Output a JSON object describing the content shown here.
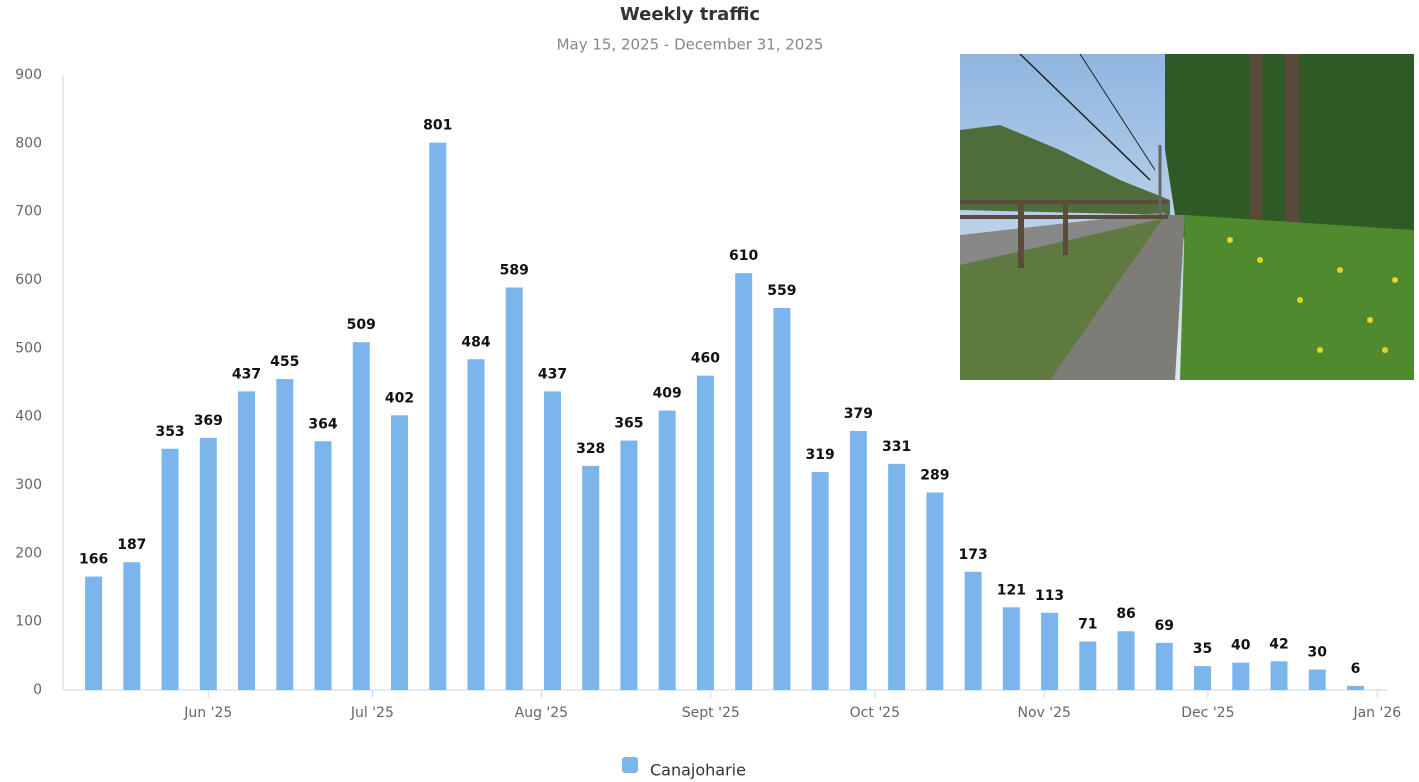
{
  "chart_data": {
    "type": "bar",
    "title": "Weekly traffic",
    "subtitle": "May 15, 2025 - December 31, 2025",
    "categories": [
      null,
      null,
      null,
      null,
      null,
      null,
      null,
      null,
      null,
      null,
      null,
      null,
      null,
      null,
      null,
      null,
      null,
      null,
      null,
      null,
      null,
      null,
      null,
      null,
      null,
      null,
      null,
      null,
      null,
      null,
      null,
      null,
      null,
      null
    ],
    "series": [
      {
        "name": "Canajoharie",
        "color": "#7cb5ec",
        "values": [
          166,
          187,
          353,
          369,
          437,
          455,
          364,
          509,
          402,
          801,
          484,
          589,
          437,
          328,
          365,
          409,
          460,
          610,
          559,
          319,
          379,
          331,
          289,
          173,
          121,
          113,
          71,
          86,
          69,
          35,
          40,
          42,
          30,
          6
        ]
      }
    ],
    "ylim": [
      0,
      900
    ],
    "yticks": [
      0,
      100,
      200,
      300,
      400,
      500,
      600,
      700,
      800,
      900
    ],
    "xlim": [
      -0.8,
      33.85
    ],
    "xticks": [
      {
        "value": 3,
        "label": "Jun '25"
      },
      {
        "value": 7.29,
        "label": "Jul '25"
      },
      {
        "value": 11.71,
        "label": "Aug '25"
      },
      {
        "value": 16.14,
        "label": "Sept '25"
      },
      {
        "value": 20.43,
        "label": "Oct '25"
      },
      {
        "value": 24.86,
        "label": "Nov '25"
      },
      {
        "value": 29.14,
        "label": "Dec '25"
      },
      {
        "value": 33.57,
        "label": "Jan '26"
      }
    ],
    "grid": false,
    "legend": "bottom"
  }
}
